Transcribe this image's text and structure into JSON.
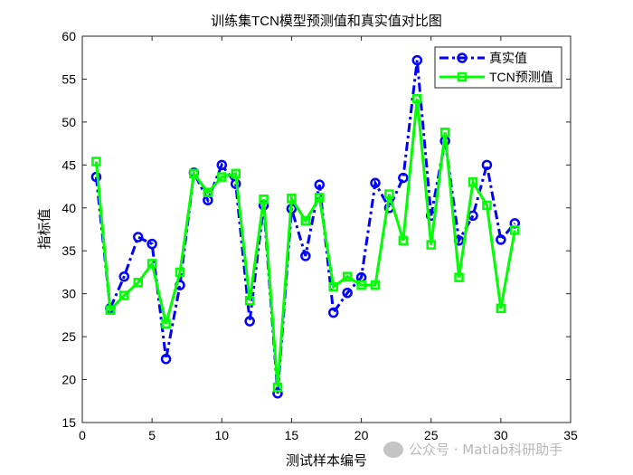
{
  "chart_data": {
    "type": "line",
    "title": "训练集TCN模型预测值和真实值对比图",
    "xlabel": "测试样本编号",
    "ylabel": "指标值",
    "xlim": [
      0,
      35
    ],
    "ylim": [
      15,
      60
    ],
    "xticks": [
      0,
      5,
      10,
      15,
      20,
      25,
      30,
      35
    ],
    "yticks": [
      15,
      20,
      25,
      30,
      35,
      40,
      45,
      50,
      55,
      60
    ],
    "grid": false,
    "legend_position": "top-right",
    "x": [
      1,
      2,
      3,
      4,
      5,
      6,
      7,
      8,
      9,
      10,
      11,
      12,
      13,
      14,
      15,
      16,
      17,
      18,
      19,
      20,
      21,
      22,
      23,
      24,
      25,
      26,
      27,
      28,
      29,
      30,
      31
    ],
    "series": [
      {
        "name": "真实值",
        "color": "#0000ff",
        "style": "dash-dot",
        "marker": "circle",
        "values": [
          43.6,
          28.3,
          32.0,
          36.6,
          35.8,
          22.4,
          31.0,
          44.1,
          40.9,
          45.0,
          42.8,
          26.8,
          40.3,
          18.4,
          39.9,
          34.4,
          42.7,
          27.8,
          30.1,
          31.9,
          42.9,
          40.0,
          43.5,
          57.2,
          39.1,
          47.8,
          36.2,
          39.1,
          45.0,
          36.3,
          38.2
        ]
      },
      {
        "name": "TCN预测值",
        "color": "#00ff00",
        "style": "solid",
        "marker": "square",
        "values": [
          45.4,
          28.1,
          29.8,
          31.3,
          33.5,
          26.5,
          32.5,
          44.0,
          41.8,
          43.6,
          44.0,
          29.2,
          41.0,
          19.1,
          41.1,
          38.5,
          41.2,
          30.8,
          32.0,
          31.0,
          31.0,
          41.6,
          36.2,
          52.7,
          35.7,
          48.8,
          31.9,
          43.0,
          40.3,
          28.3,
          37.4
        ]
      }
    ]
  },
  "watermark": "公众号 · Matlab科研助手"
}
